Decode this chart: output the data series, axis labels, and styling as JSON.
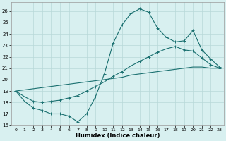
{
  "xlabel": "Humidex (Indice chaleur)",
  "xlim": [
    -0.5,
    23.5
  ],
  "ylim": [
    16,
    26.8
  ],
  "yticks": [
    16,
    17,
    18,
    19,
    20,
    21,
    22,
    23,
    24,
    25,
    26
  ],
  "xticks": [
    0,
    1,
    2,
    3,
    4,
    5,
    6,
    7,
    8,
    9,
    10,
    11,
    12,
    13,
    14,
    15,
    16,
    17,
    18,
    19,
    20,
    21,
    22,
    23
  ],
  "bg_color": "#d8f0f0",
  "grid_color": "#b8d8d8",
  "line_color": "#1a7070",
  "line1_y": [
    19.0,
    18.1,
    17.5,
    17.3,
    17.0,
    17.0,
    16.8,
    16.3,
    17.0,
    18.5,
    20.5,
    23.2,
    24.8,
    25.8,
    26.2,
    25.9,
    24.5,
    23.7,
    23.3,
    23.4,
    24.3,
    22.6,
    21.8,
    21.1
  ],
  "line2_y": [
    19.0,
    18.5,
    18.1,
    18.0,
    18.1,
    18.2,
    18.4,
    18.6,
    19.0,
    19.4,
    19.8,
    20.3,
    20.7,
    21.2,
    21.6,
    22.0,
    22.4,
    22.7,
    22.9,
    22.6,
    22.5,
    21.9,
    21.3,
    21.0
  ],
  "line3_y": [
    19.0,
    19.1,
    19.2,
    19.3,
    19.4,
    19.5,
    19.6,
    19.7,
    19.8,
    19.9,
    20.0,
    20.1,
    20.2,
    20.4,
    20.5,
    20.6,
    20.7,
    20.8,
    20.9,
    21.0,
    21.1,
    21.1,
    21.0,
    21.0
  ]
}
